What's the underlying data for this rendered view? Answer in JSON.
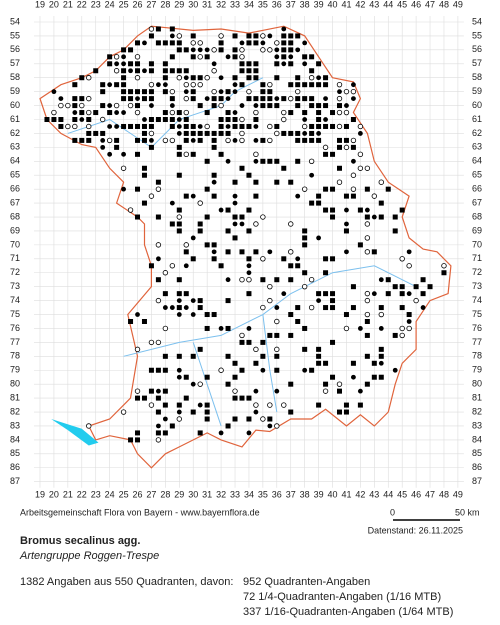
{
  "x_labels": [
    19,
    20,
    21,
    22,
    23,
    24,
    25,
    26,
    27,
    28,
    29,
    30,
    31,
    32,
    33,
    34,
    35,
    36,
    37,
    38,
    39,
    40,
    41,
    42,
    43,
    44,
    45,
    46,
    47,
    48,
    49
  ],
  "y_labels": [
    54,
    55,
    56,
    57,
    58,
    59,
    60,
    61,
    62,
    63,
    64,
    65,
    66,
    67,
    68,
    69,
    70,
    71,
    72,
    73,
    74,
    75,
    76,
    77,
    78,
    79,
    80,
    81,
    82,
    83,
    84,
    85,
    86,
    87
  ],
  "footer": {
    "source": "Arbeitsgemeinschaft Flora von Bayern - www.bayernflora.de",
    "scale_start": "0",
    "scale_end": "50 km",
    "date": "Datenstand: 26.11.2025"
  },
  "species": {
    "name": "Bromus secalinus agg.",
    "common_name": "Artengruppe Roggen-Trespe"
  },
  "summary": {
    "total": "1382 Angaben aus 550 Quadranten, davon:",
    "items": [
      "952 Quadranten-Angaben",
      "72 1/4-Quadranten-Angaben (1/16 MTB)",
      "337 1/16-Quadranten-Angaben (1/64 MTB)"
    ]
  }
}
